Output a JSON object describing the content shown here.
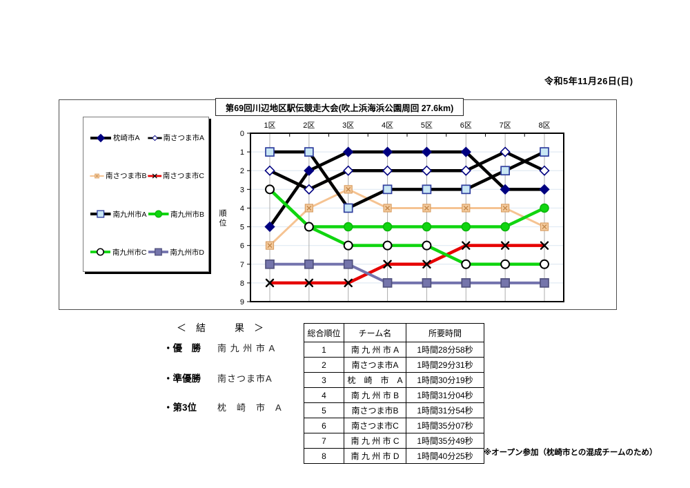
{
  "page": {
    "date": "令和5年11月26日(日)",
    "chart_title": "第69回川辺地区駅伝競走大会(吹上浜海浜公園周回 27.6km)"
  },
  "chart_data": {
    "type": "line",
    "title": "第69回川辺地区駅伝競走大会(吹上浜海浜公園周回 27.6km)",
    "categories": [
      "1区",
      "2区",
      "3区",
      "4区",
      "5区",
      "6区",
      "7区",
      "8区"
    ],
    "ylabel": "順位",
    "yticks": [
      0,
      1,
      2,
      3,
      4,
      5,
      6,
      7,
      8,
      9
    ],
    "ylim": [
      0,
      9
    ],
    "y_inverted": true,
    "grid": "on",
    "legend_position": "left-box",
    "colors": {
      "black_line": "#000000",
      "navy_marker": "#000080",
      "peach_line": "#F5C392",
      "red_line": "#E60000",
      "lightblue_fill": "#C9E7F4",
      "green_line": "#10D510",
      "purple_line": "#7373AD",
      "v_gridline": "#ACACAC",
      "h_gridline": "#E0EAF3"
    },
    "series": [
      {
        "name": "枕崎市A",
        "values": [
          5,
          2,
          1,
          1,
          1,
          1,
          3,
          3
        ],
        "line_color": "#000000",
        "line_width": 4.5,
        "marker": "diamond",
        "marker_fill": "#000080",
        "marker_stroke": "#000080"
      },
      {
        "name": "南さつま市A",
        "values": [
          2,
          3,
          2,
          2,
          2,
          2,
          1,
          2
        ],
        "line_color": "#000000",
        "line_width": 4.5,
        "marker": "diamond",
        "marker_fill": "#ffffff",
        "marker_stroke": "#000080"
      },
      {
        "name": "南さつま市B",
        "values": [
          6,
          4,
          3,
          4,
          4,
          4,
          4,
          5
        ],
        "line_color": "#F5C392",
        "line_width": 3,
        "marker": "square-x",
        "marker_fill": "#F4CB9E",
        "marker_stroke": "#D99E63"
      },
      {
        "name": "南さつま市C",
        "values": [
          8,
          8,
          8,
          7,
          7,
          6,
          6,
          6
        ],
        "line_color": "#E60000",
        "line_width": 4.5,
        "marker": "x",
        "marker_fill": "#000000",
        "marker_stroke": "#000000"
      },
      {
        "name": "南九州市A",
        "values": [
          1,
          1,
          4,
          3,
          3,
          3,
          2,
          1
        ],
        "line_color": "#000000",
        "line_width": 4.5,
        "marker": "square",
        "marker_fill": "#C9E7F4",
        "marker_stroke": "#2F3E9E"
      },
      {
        "name": "南九州市B",
        "values": [
          3,
          5,
          5,
          5,
          5,
          5,
          5,
          4
        ],
        "line_color": "#10D510",
        "line_width": 4.5,
        "marker": "circle",
        "marker_fill": "#10D510",
        "marker_stroke": "#0BB40B"
      },
      {
        "name": "南九州市C",
        "values": [
          3,
          5,
          6,
          6,
          6,
          7,
          7,
          7
        ],
        "line_color": "#10D510",
        "line_width": 4.5,
        "marker": "circle",
        "marker_fill": "#ffffff",
        "marker_stroke": "#000000"
      },
      {
        "name": "南九州市D",
        "values": [
          7,
          7,
          7,
          8,
          8,
          8,
          8,
          8
        ],
        "line_color": "#7373AD",
        "line_width": 4,
        "marker": "square",
        "marker_fill": "#7575AB",
        "marker_stroke": "#52527E"
      }
    ]
  },
  "results": {
    "heading": "＜　結　　　果　＞",
    "items": [
      {
        "title": "・優　勝",
        "team": "南 九 州 市 A"
      },
      {
        "title": "・準優勝",
        "team": "南さつま市A"
      },
      {
        "title": "・第3位",
        "team": "枕　崎　市　A"
      }
    ]
  },
  "table": {
    "headers": [
      "総合順位",
      "チーム名",
      "所要時間"
    ],
    "rows": [
      {
        "rank": "1",
        "team": "南 九 州 市 A",
        "time": "1時間28分58秒"
      },
      {
        "rank": "2",
        "team": "南さつま市A",
        "time": "1時間29分31秒"
      },
      {
        "rank": "3",
        "team": "枕　崎　市　A",
        "time": "1時間30分19秒"
      },
      {
        "rank": "4",
        "team": "南 九 州 市 B",
        "time": "1時間31分04秒"
      },
      {
        "rank": "5",
        "team": "南さつま市B",
        "time": "1時間31分54秒"
      },
      {
        "rank": "6",
        "team": "南さつま市C",
        "time": "1時間35分07秒"
      },
      {
        "rank": "7",
        "team": "南 九 州 市 C",
        "time": "1時間35分49秒"
      },
      {
        "rank": "8",
        "team": "南 九 州 市 D",
        "time": "1時間40分25秒"
      }
    ],
    "footnote": "※オープン参加（枕崎市との混成チームのため）"
  }
}
